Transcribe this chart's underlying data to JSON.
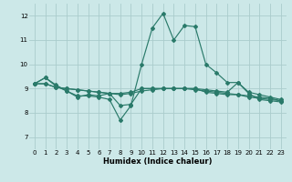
{
  "xlabel": "Humidex (Indice chaleur)",
  "bg_color": "#cce8e8",
  "grid_color": "#aacccc",
  "line_color": "#2a7a6a",
  "xlim": [
    -0.5,
    23.5
  ],
  "ylim": [
    6.5,
    12.5
  ],
  "xticks": [
    0,
    1,
    2,
    3,
    4,
    5,
    6,
    7,
    8,
    9,
    10,
    11,
    12,
    13,
    14,
    15,
    16,
    17,
    18,
    19,
    20,
    21,
    22,
    23
  ],
  "yticks": [
    7,
    8,
    9,
    10,
    11,
    12
  ],
  "line1_x": [
    0,
    1,
    2,
    3,
    4,
    5,
    6,
    7,
    8,
    9,
    10,
    11,
    12,
    13,
    14,
    15,
    16,
    17,
    18,
    19,
    20,
    21,
    22,
    23
  ],
  "line1_y": [
    9.2,
    9.45,
    9.1,
    8.9,
    8.65,
    8.75,
    8.7,
    8.8,
    8.3,
    8.35,
    9.0,
    9.0,
    9.0,
    9.0,
    9.0,
    9.0,
    8.85,
    8.8,
    8.75,
    8.75,
    8.65,
    8.6,
    8.55,
    8.5
  ],
  "line2_x": [
    0,
    1,
    2,
    3,
    4,
    5,
    6,
    7,
    8,
    9,
    10,
    11,
    12,
    13,
    14,
    15,
    16,
    17,
    18,
    19,
    20,
    21,
    22,
    23
  ],
  "line2_y": [
    9.2,
    9.45,
    9.15,
    8.9,
    8.7,
    8.7,
    8.65,
    8.55,
    7.7,
    8.3,
    10.0,
    11.5,
    12.1,
    11.0,
    11.6,
    11.55,
    10.0,
    9.65,
    9.25,
    9.25,
    8.8,
    8.55,
    8.5,
    8.45
  ],
  "line3_x": [
    0,
    1,
    2,
    3,
    4,
    5,
    6,
    7,
    8,
    9,
    10,
    11,
    12,
    13,
    14,
    15,
    16,
    17,
    18,
    19,
    20,
    21,
    22,
    23
  ],
  "line3_y": [
    9.2,
    9.2,
    9.05,
    9.0,
    8.95,
    8.9,
    8.85,
    8.8,
    8.8,
    8.85,
    9.0,
    9.0,
    9.0,
    9.0,
    9.0,
    9.0,
    8.95,
    8.9,
    8.85,
    9.25,
    8.85,
    8.75,
    8.65,
    8.55
  ],
  "line4_x": [
    0,
    1,
    2,
    3,
    4,
    5,
    6,
    7,
    8,
    9,
    10,
    11,
    12,
    13,
    14,
    15,
    16,
    17,
    18,
    19,
    20,
    21,
    22,
    23
  ],
  "line4_y": [
    9.2,
    9.2,
    9.05,
    9.0,
    8.95,
    8.9,
    8.85,
    8.8,
    8.75,
    8.8,
    8.9,
    8.95,
    9.0,
    9.0,
    9.0,
    8.95,
    8.9,
    8.85,
    8.8,
    8.75,
    8.7,
    8.65,
    8.6,
    8.5
  ]
}
